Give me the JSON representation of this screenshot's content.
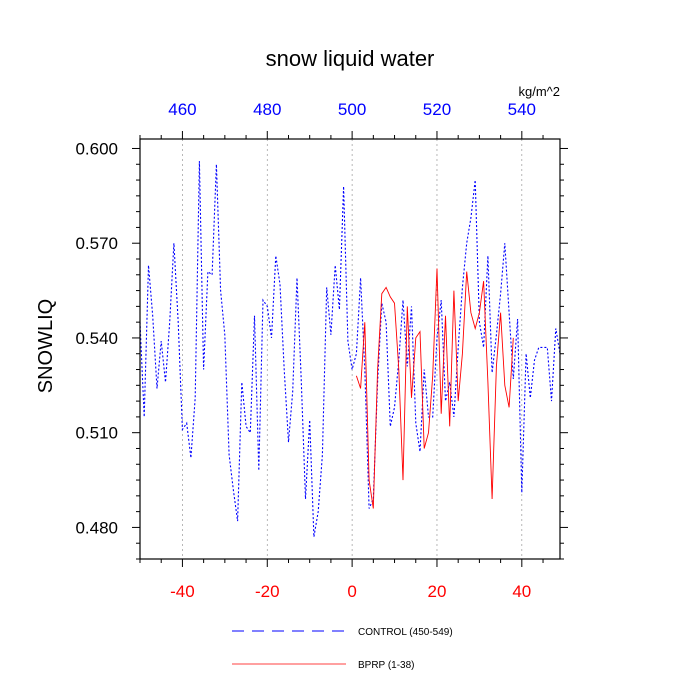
{
  "chart_data": {
    "type": "line",
    "title": "snow liquid water",
    "ylabel": "SNOWLIQ",
    "top_axis_units": "kg/m^2",
    "xlim": [
      -50,
      49
    ],
    "ylim": [
      0.47,
      0.603
    ],
    "bottom_ticks": [
      -40,
      -20,
      0,
      20,
      40
    ],
    "top_ticks": [
      460,
      480,
      500,
      520,
      540
    ],
    "top_tick_offset": 500,
    "y_ticks": [
      "0.600",
      "0.570",
      "0.540",
      "0.510",
      "0.480"
    ],
    "y_tick_values": [
      0.6,
      0.57,
      0.54,
      0.51,
      0.48
    ],
    "grid_x_lines": true,
    "bottom_tick_color": "#ff0000",
    "top_tick_color": "#0000ff",
    "series": [
      {
        "name": "CONTROL (450-549)",
        "color": "#0000ff",
        "style": "dashed",
        "x": [
          -50,
          -49,
          -48,
          -47,
          -46,
          -45,
          -44,
          -43,
          -42,
          -41,
          -40,
          -39,
          -38,
          -37,
          -36,
          -35,
          -34,
          -33,
          -32,
          -31,
          -30,
          -29,
          -28,
          -27,
          -26,
          -25,
          -24,
          -23,
          -22,
          -21,
          -20,
          -19,
          -18,
          -17,
          -16,
          -15,
          -14,
          -13,
          -12,
          -11,
          -10,
          -9,
          -8,
          -7,
          -6,
          -5,
          -4,
          -3,
          -2,
          -1,
          0,
          1,
          2,
          3,
          4,
          5,
          6,
          7,
          8,
          9,
          10,
          11,
          12,
          13,
          14,
          15,
          16,
          17,
          18,
          19,
          20,
          21,
          22,
          23,
          24,
          25,
          26,
          27,
          28,
          29,
          30,
          31,
          32,
          33,
          34,
          35,
          36,
          37,
          38,
          39,
          40,
          41,
          42,
          43,
          44,
          45,
          46,
          47,
          48,
          49
        ],
        "y": [
          0.545,
          0.515,
          0.563,
          0.547,
          0.524,
          0.539,
          0.526,
          0.545,
          0.57,
          0.545,
          0.511,
          0.513,
          0.502,
          0.521,
          0.596,
          0.53,
          0.561,
          0.56,
          0.595,
          0.555,
          0.541,
          0.503,
          0.492,
          0.482,
          0.526,
          0.512,
          0.51,
          0.547,
          0.498,
          0.552,
          0.55,
          0.54,
          0.566,
          0.557,
          0.53,
          0.507,
          0.523,
          0.559,
          0.527,
          0.489,
          0.514,
          0.477,
          0.485,
          0.503,
          0.556,
          0.541,
          0.563,
          0.549,
          0.588,
          0.539,
          0.53,
          0.535,
          0.559,
          0.53,
          0.486,
          0.489,
          0.526,
          0.551,
          0.545,
          0.512,
          0.518,
          0.533,
          0.552,
          0.531,
          0.55,
          0.513,
          0.504,
          0.53,
          0.515,
          0.515,
          0.54,
          0.552,
          0.52,
          0.526,
          0.515,
          0.537,
          0.556,
          0.57,
          0.578,
          0.59,
          0.545,
          0.537,
          0.566,
          0.529,
          0.541,
          0.554,
          0.57,
          0.548,
          0.527,
          0.546,
          0.491,
          0.535,
          0.521,
          0.533,
          0.537,
          0.537,
          0.537,
          0.52,
          0.543,
          0.535
        ]
      },
      {
        "name": "BPRP (1-38)",
        "color": "#ff0000",
        "style": "solid",
        "x": [
          1,
          2,
          3,
          4,
          5,
          6,
          7,
          8,
          9,
          10,
          11,
          12,
          13,
          14,
          15,
          16,
          17,
          18,
          19,
          20,
          21,
          22,
          23,
          24,
          25,
          26,
          27,
          28,
          29,
          30,
          31,
          32,
          33,
          34,
          35,
          36,
          37,
          38
        ],
        "y": [
          0.528,
          0.524,
          0.545,
          0.495,
          0.486,
          0.53,
          0.554,
          0.556,
          0.553,
          0.551,
          0.53,
          0.495,
          0.55,
          0.521,
          0.54,
          0.542,
          0.505,
          0.51,
          0.528,
          0.562,
          0.516,
          0.547,
          0.512,
          0.555,
          0.52,
          0.535,
          0.561,
          0.548,
          0.543,
          0.548,
          0.558,
          0.526,
          0.489,
          0.531,
          0.548,
          0.525,
          0.518,
          0.54
        ]
      }
    ]
  }
}
